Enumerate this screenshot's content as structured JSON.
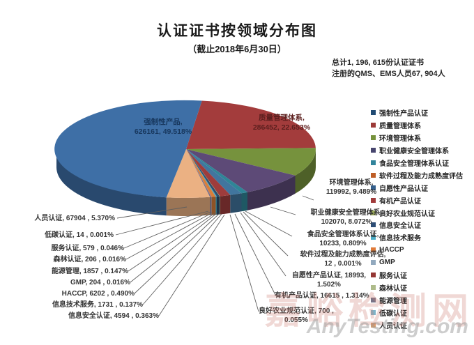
{
  "header": {
    "title": "认证证书按领域分布图",
    "subtitle": "（截止2018年6月30日）",
    "total_line1": "总计1, 196, 615份认证证书",
    "total_line2": "注册的QMS、EMS人员67, 904人"
  },
  "watermark": {
    "cn": "嘉峪检测网",
    "en": "AnyTesting.com"
  },
  "chart_data": {
    "type": "pie",
    "title": "认证证书按领域分布图（截止2018年6月30日）",
    "total_certificates": 1196615,
    "legend_position": "right",
    "style": "3d-pie",
    "slices": [
      {
        "label": "强制性产品认证",
        "value": 626161,
        "pct": "49.518%",
        "callout": [
          "强制性产品,",
          "626161, 49.518%"
        ],
        "color": "#3E6FA6",
        "legend_color": "#204A73",
        "callout_color": "#17375D"
      },
      {
        "label": "质量管理体系",
        "value": 286452,
        "pct": "22.653%",
        "callout": [
          "质量管理体系,",
          "286452, 22.653%"
        ],
        "color": "#A33C3C",
        "legend_color": "#9C3A38",
        "callout_color": "#5C1F1E"
      },
      {
        "label": "环境管理体系",
        "value": 119992,
        "pct": "9.489%",
        "callout": [
          "环境管理体系,",
          "119992, 9.489%"
        ],
        "color": "#76923D",
        "legend_color": "#76923C"
      },
      {
        "label": "职业健康安全管理体系",
        "value": 102070,
        "pct": "8.072%",
        "callout": [
          "职业健康安全管理体系,",
          "102070, 8.072%"
        ],
        "color": "#5D4A77",
        "legend_color": "#47456E"
      },
      {
        "label": "食品安全管理体系认证",
        "value": 10233,
        "pct": "0.809%",
        "callout": [
          "食品安全管理体系认证,",
          "10233, 0.809%"
        ],
        "color": "#2F8597",
        "legend_color": "#31849B"
      },
      {
        "label": "软件过程及能力成熟度评估",
        "value": 12,
        "pct": "0.001%",
        "callout": [
          "软件过程及能力成熟度评估,",
          "12 , 0.001%"
        ],
        "color": "#C9712F",
        "legend_color": "#BE5E27"
      },
      {
        "label": "自愿性产品认证",
        "value": 18993,
        "pct": "1.502%",
        "callout": [
          "自愿性产品认证, 18993,",
          "1.502%"
        ],
        "color": "#41759E",
        "legend_color": "#35608D"
      },
      {
        "label": "有机产品认证",
        "value": 16615,
        "pct": "1.314%",
        "callout": [
          "有机产品认证, 16615 , 1.314%"
        ],
        "color": "#9E3C3C",
        "legend_color": "#A13B3B"
      },
      {
        "label": "良好农业规范认证",
        "value": 700,
        "pct": "0.055%",
        "callout": [
          "良好农业规范认证, 700 ,",
          "0.055%"
        ],
        "color": "#9BAB5A",
        "legend_color": "#9BAB5A"
      },
      {
        "label": "信息安全认证",
        "value": 4594,
        "pct": "0.363%",
        "callout": [
          "信息安全认证, 4594 , 0.363%"
        ],
        "color": "#2E4D6E",
        "legend_color": "#2C4D75"
      },
      {
        "label": "信息技术服务",
        "value": 1731,
        "pct": "0.137%",
        "callout": [
          "信息技术服务, 1731 , 0.137%"
        ],
        "color": "#49A8C2",
        "legend_color": "#4BACC6"
      },
      {
        "label": "HACCP",
        "value": 6202,
        "pct": "0.490%",
        "callout": [
          "HACCP, 6202 , 0.490%"
        ],
        "color": "#D97E3A",
        "legend_color": "#E07B39"
      },
      {
        "label": "GMP",
        "value": 204,
        "pct": "0.016%",
        "callout": [
          "GMP, 204 , 0.016%"
        ],
        "color": "#93A9BE",
        "legend_color": "#92A9BE"
      },
      {
        "label": "服务认证",
        "value": 579,
        "pct": "0.046%",
        "callout": [
          "服务认证, 579 , 0.046%"
        ],
        "color": "#8E3432",
        "legend_color": "#943634"
      },
      {
        "label": "森林认证",
        "value": 206,
        "pct": "0.016%",
        "callout": [
          "森林认证, 206 , 0.016%"
        ],
        "color": "#A8B878",
        "legend_color": "#AEBB8A"
      },
      {
        "label": "能源管理",
        "value": 1857,
        "pct": "0.147%",
        "callout": [
          "能源管理, 1857 , 0.147%"
        ],
        "color": "#6F6A88",
        "legend_color": "#787286"
      },
      {
        "label": "低碳认证",
        "value": 14,
        "pct": "0.001%",
        "callout": [
          "低碳认证, 14 , 0.001%"
        ],
        "color": "#7FB4C9",
        "legend_color": "#7FB4C9"
      },
      {
        "label": "人员认证",
        "value": 67904,
        "pct": "5.370%",
        "callout": [
          "人员认证, 67904 , 5.370%"
        ],
        "color": "#EBB183",
        "legend_color": "#E3A069"
      }
    ]
  }
}
